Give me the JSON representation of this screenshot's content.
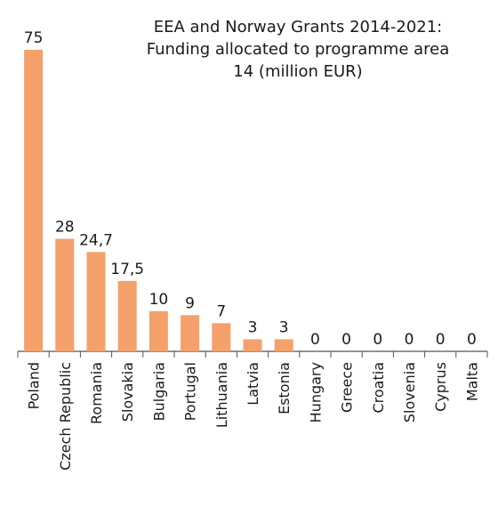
{
  "chart_data": {
    "type": "bar",
    "title_lines": [
      "EEA and Norway Grants 2014-2021:",
      "Funding allocated to programme area",
      "14 (million EUR)"
    ],
    "categories": [
      "Poland",
      "Czech Republic",
      "Romania",
      "Slovakia",
      "Bulgaria",
      "Portugal",
      "Lithuania",
      "Latvia",
      "Estonia",
      "Hungary",
      "Greece",
      "Croatia",
      "Slovenia",
      "Cyprus",
      "Malta"
    ],
    "values": [
      75,
      28,
      24.7,
      17.5,
      10,
      9,
      7,
      3,
      3,
      0,
      0,
      0,
      0,
      0,
      0
    ],
    "data_labels": [
      "75",
      "28",
      "24,7",
      "17,5",
      "10",
      "9",
      "7",
      "3",
      "3",
      "0",
      "0",
      "0",
      "0",
      "0",
      "0"
    ],
    "xlabel": "",
    "ylabel": "",
    "ylim": [
      0,
      75
    ],
    "grid": false,
    "legend": "none",
    "bar_color": "#f4a06b",
    "axis_color": "#555555",
    "text_color": "#1a1a1a"
  }
}
